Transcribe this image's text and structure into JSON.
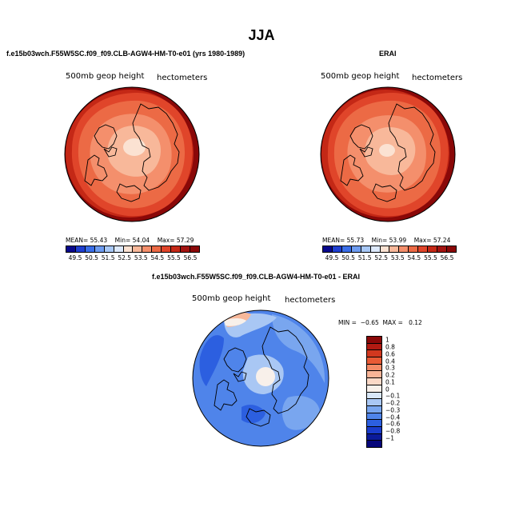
{
  "title": "JJA",
  "panels": {
    "left": {
      "title": "f.e15b03wch.F55W5SC.f09_f09.CLB-AGW4-HM-T0-e01 (yrs 1980-1989)",
      "variable": "500mb geop height",
      "units": "hectometers",
      "stats": {
        "mean_label": "MEAN=",
        "mean": "55.43",
        "min_label": "Min=",
        "min": "54.04",
        "max_label": "Max=",
        "max": "57.29"
      }
    },
    "right": {
      "title": "ERAI",
      "variable": "500mb geop height",
      "units": "hectometers",
      "stats": {
        "mean_label": "MEAN=",
        "mean": "55.73",
        "min_label": "Min=",
        "min": "53.99",
        "max_label": "Max=",
        "max": "57.24"
      }
    },
    "diff": {
      "title": "f.e15b03wch.F55W5SC.f09_f09.CLB-AGW4-HM-T0-e01 - ERAI",
      "variable": "500mb geop height",
      "units": "hectometers",
      "stats": {
        "min_label": "MIN =",
        "min": "−0.65",
        "max_label": "MAX =",
        "max": "0.12"
      }
    }
  },
  "colorbar_abs": {
    "labels": [
      "49.5",
      "50.5",
      "51.5",
      "52.5",
      "53.5",
      "54.5",
      "55.5",
      "56.5"
    ],
    "colors": [
      "#08088c",
      "#1f3fd0",
      "#3a6ee8",
      "#6e9cf0",
      "#a8c8f6",
      "#dde9fb",
      "#fbe2d2",
      "#f8b89a",
      "#f48f6c",
      "#ec6a45",
      "#e0452a",
      "#c42816",
      "#a21310",
      "#8a0808"
    ]
  },
  "colorbar_diff": {
    "labels": [
      "1",
      "0.8",
      "0.6",
      "0.4",
      "0.3",
      "0.2",
      "0.1",
      "0",
      "−0.1",
      "−0.2",
      "−0.3",
      "−0.4",
      "−0.6",
      "−0.8",
      "−1"
    ],
    "colors": [
      "#8a0808",
      "#b11a12",
      "#d2381f",
      "#e95a35",
      "#f48a66",
      "#f9b497",
      "#fbd8c6",
      "#f8f0ea",
      "#d9e7f8",
      "#a9c7f4",
      "#79a6ef",
      "#4f84ea",
      "#2c5fe0",
      "#1a3ccc",
      "#0b1a9a",
      "#06067a"
    ]
  },
  "map_colors": {
    "ring_outer": "#8a0808",
    "ring_mid": "#c42816",
    "ring_inner": "#e0452a",
    "body": "#ec6a45",
    "inner": "#f48f6c",
    "core": "#f8b89a",
    "pole": "#fbe2d2",
    "diff_base": "#4f84ea",
    "diff_light": "#79a6ef",
    "diff_lighter": "#a9c7f4",
    "diff_dark": "#2c5fe0",
    "diff_center": "#f8f0ea"
  }
}
